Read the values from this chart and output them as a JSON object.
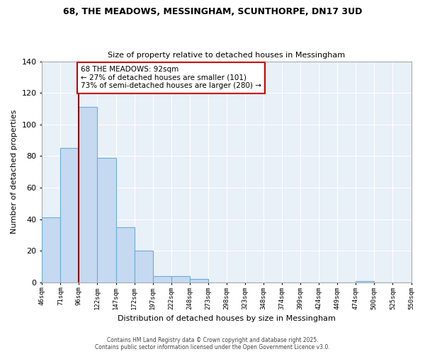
{
  "title": "68, THE MEADOWS, MESSINGHAM, SCUNTHORPE, DN17 3UD",
  "subtitle": "Size of property relative to detached houses in Messingham",
  "xlabel": "Distribution of detached houses by size in Messingham",
  "ylabel": "Number of detached properties",
  "bar_values": [
    41,
    85,
    111,
    79,
    35,
    20,
    4,
    4,
    2,
    0,
    0,
    0,
    0,
    0,
    0,
    0,
    0,
    1,
    0,
    0
  ],
  "bin_labels": [
    "46sqm",
    "71sqm",
    "96sqm",
    "122sqm",
    "147sqm",
    "172sqm",
    "197sqm",
    "222sqm",
    "248sqm",
    "273sqm",
    "298sqm",
    "323sqm",
    "348sqm",
    "374sqm",
    "399sqm",
    "424sqm",
    "449sqm",
    "474sqm",
    "500sqm",
    "525sqm",
    "550sqm"
  ],
  "bar_color": "#c5d9f1",
  "bar_edge_color": "#6baed6",
  "plot_bg_color": "#e8f0f8",
  "grid_color": "#ffffff",
  "vline_x": 2,
  "vline_color": "#8b0000",
  "annotation_text": "68 THE MEADOWS: 92sqm\n← 27% of detached houses are smaller (101)\n73% of semi-detached houses are larger (280) →",
  "annotation_box_color": "#ffffff",
  "annotation_box_edge": "#cc0000",
  "ylim": [
    0,
    140
  ],
  "yticks": [
    0,
    20,
    40,
    60,
    80,
    100,
    120,
    140
  ],
  "footnote1": "Contains HM Land Registry data © Crown copyright and database right 2025.",
  "footnote2": "Contains public sector information licensed under the Open Government Licence v3.0."
}
